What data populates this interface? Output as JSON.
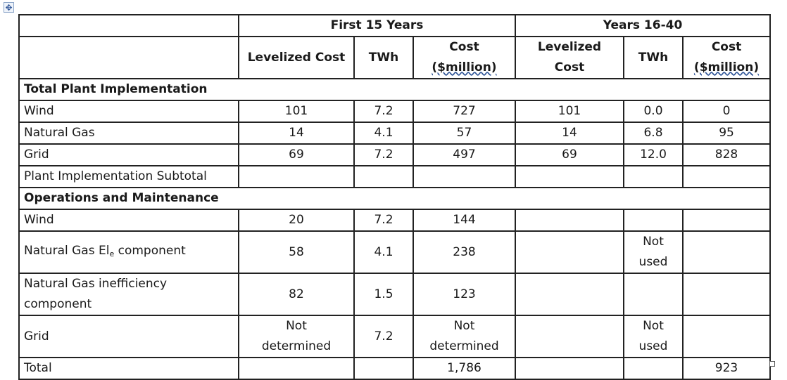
{
  "header": {
    "group1": "First 15 Years",
    "group2": "Years 16-40",
    "levelized_cost": "Levelized Cost",
    "twh": "TWh",
    "cost_line1": "Cost",
    "cost_line2": "($million)",
    "levelized_line1": "Levelized",
    "levelized_line2": "Cost",
    "twh2": "TWh",
    "cost2_line1": "Cost",
    "cost2_line2": "($million)"
  },
  "sections": {
    "plant": "Total Plant Implementation",
    "om": "Operations and Maintenance"
  },
  "rows": {
    "wind": {
      "label": "Wind",
      "lc1": "101",
      "twh1": "7.2",
      "cost1": "727",
      "lc2": "101",
      "twh2": "0.0",
      "cost2": "0"
    },
    "gas": {
      "label": "Natural Gas",
      "lc1": "14",
      "twh1": "4.1",
      "cost1": "57",
      "lc2": "14",
      "twh2": "6.8",
      "cost2": "95"
    },
    "grid": {
      "label": "Grid",
      "lc1": "69",
      "twh1": "7.2",
      "cost1": "497",
      "lc2": "69",
      "twh2": "12.0",
      "cost2": "828"
    },
    "subtotal": {
      "label": "Plant Implementation Subtotal"
    },
    "om_wind": {
      "label": "Wind",
      "lc1": "20",
      "twh1": "7.2",
      "cost1": "144"
    },
    "om_gas_el": {
      "label_pre": "Natural Gas El",
      "label_sub": "e",
      "label_post": " component",
      "lc1": "58",
      "twh1": "4.1",
      "cost1": "238",
      "twh2_line1": "Not",
      "twh2_line2": "used"
    },
    "om_gas_ineff": {
      "label_line1": "Natural Gas inefficiency",
      "label_line2": "component",
      "lc1": "82",
      "twh1": "1.5",
      "cost1": "123"
    },
    "om_grid": {
      "label": "Grid",
      "lc1_line1": "Not",
      "lc1_line2": "determined",
      "twh1": "7.2",
      "cost1_line1": "Not",
      "cost1_line2": "determined",
      "twh2_line1": "Not",
      "twh2_line2": "used"
    },
    "total": {
      "label": "Total",
      "cost1": "1,786",
      "cost2": "923"
    }
  }
}
